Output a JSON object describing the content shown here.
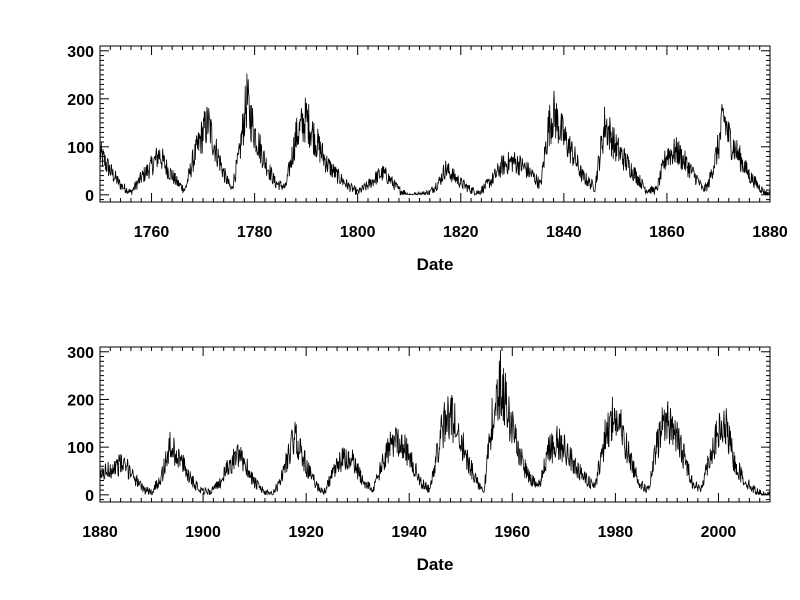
{
  "chart_data": [
    {
      "type": "line",
      "title": "",
      "xlabel": "Date",
      "ylabel": "",
      "xlim": [
        1750,
        1880
      ],
      "ylim": [
        -15,
        310
      ],
      "x_ticks": [
        "1760",
        "1780",
        "1800",
        "1820",
        "1840",
        "1860",
        "1880"
      ],
      "y_ticks": [
        "0",
        "100",
        "200",
        "300"
      ],
      "grid": false,
      "series": [
        {
          "x": [
            1750,
            1752,
            1754,
            1756,
            1758,
            1760,
            1761.5,
            1763,
            1765,
            1766.5,
            1768,
            1770,
            1771,
            1772,
            1774,
            1775.5,
            1777,
            1778.5,
            1779,
            1780,
            1782,
            1784,
            1786,
            1788,
            1790,
            1792,
            1794,
            1796,
            1798,
            1800,
            1802,
            1804,
            1805,
            1806,
            1808,
            1810,
            1812,
            1814,
            1816,
            1817,
            1818,
            1820,
            1822,
            1823.5,
            1826,
            1828,
            1830,
            1832,
            1834,
            1835.5,
            1837,
            1838,
            1840,
            1842,
            1843.5,
            1846,
            1848,
            1850,
            1852,
            1854,
            1856,
            1858,
            1860,
            1862,
            1864,
            1866,
            1867,
            1868,
            1870,
            1871,
            1872,
            1874,
            1876,
            1878,
            1879,
            1880
          ],
          "y": [
            85,
            50,
            20,
            5,
            35,
            60,
            85,
            55,
            25,
            10,
            70,
            130,
            150,
            110,
            45,
            10,
            80,
            200,
            170,
            130,
            70,
            25,
            15,
            120,
            160,
            110,
            65,
            40,
            20,
            5,
            20,
            40,
            45,
            35,
            10,
            0,
            0,
            5,
            30,
            55,
            45,
            25,
            10,
            5,
            30,
            60,
            70,
            60,
            40,
            20,
            140,
            170,
            120,
            80,
            40,
            15,
            150,
            100,
            70,
            40,
            10,
            10,
            85,
            90,
            60,
            30,
            10,
            20,
            100,
            165,
            120,
            80,
            40,
            15,
            5,
            0
          ]
        }
      ]
    },
    {
      "type": "line",
      "title": "",
      "xlabel": "Date",
      "ylabel": "",
      "xlim": [
        1880,
        2010
      ],
      "ylim": [
        -15,
        310
      ],
      "x_ticks": [
        "1880",
        "1900",
        "1920",
        "1940",
        "1960",
        "1980",
        "2000"
      ],
      "y_ticks": [
        "0",
        "100",
        "200",
        "300"
      ],
      "grid": false,
      "series": [
        {
          "x": [
            1880,
            1882,
            1884,
            1886,
            1888,
            1890,
            1892,
            1893.5,
            1895,
            1897,
            1899,
            1901,
            1903,
            1905,
            1906.5,
            1908,
            1910,
            1912,
            1913.5,
            1915,
            1917,
            1918,
            1920,
            1922,
            1923.5,
            1925,
            1927,
            1929,
            1931,
            1933,
            1935,
            1937,
            1938,
            1940,
            1942,
            1944,
            1946,
            1947.5,
            1949,
            1951,
            1953,
            1954.5,
            1956,
            1957.8,
            1959,
            1961,
            1963,
            1965,
            1967,
            1968.5,
            1970,
            1972,
            1974,
            1976,
            1978,
            1979.5,
            1981,
            1983,
            1985,
            1986.5,
            1988,
            1989.5,
            1991,
            1993,
            1995,
            1996.5,
            1998,
            2000,
            2001.5,
            2003,
            2005,
            2007,
            2009,
            2010
          ],
          "y": [
            40,
            55,
            65,
            50,
            15,
            5,
            40,
            100,
            85,
            45,
            15,
            5,
            20,
            60,
            80,
            70,
            25,
            5,
            0,
            30,
            100,
            120,
            60,
            20,
            5,
            40,
            75,
            70,
            30,
            10,
            70,
            115,
            120,
            80,
            30,
            10,
            120,
            170,
            150,
            80,
            30,
            10,
            150,
            240,
            180,
            100,
            40,
            15,
            90,
            110,
            100,
            65,
            35,
            15,
            120,
            165,
            140,
            70,
            20,
            10,
            100,
            160,
            145,
            90,
            25,
            10,
            70,
            130,
            140,
            70,
            30,
            10,
            0,
            0
          ]
        }
      ]
    }
  ]
}
